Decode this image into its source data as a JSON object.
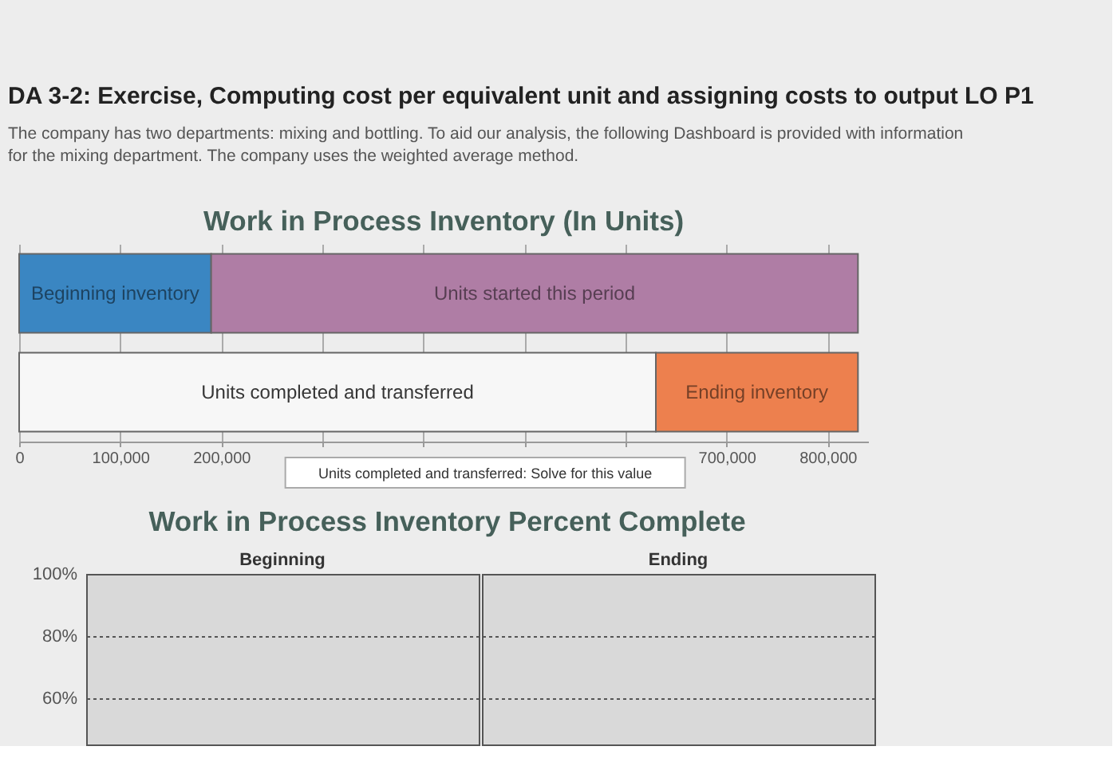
{
  "chart_data": [
    {
      "type": "other",
      "title": "DA 3-2: Exercise, Computing cost per equivalent unit and assigning costs to output LO P1",
      "annotations": [
        "The company has two departments: mixing and bottling. To aid our analysis, the following Dashboard is provided with information for the mixing department. The company uses the weighted average method."
      ]
    },
    {
      "type": "bar",
      "title": "Work in Process Inventory (In Units)",
      "orientation": "horizontal",
      "stacked": true,
      "categories": [
        null,
        null
      ],
      "series": [
        {
          "name": "Beginning inventory",
          "color": "#3a86c2",
          "values": [
            190000,
            null
          ]
        },
        {
          "name": "Units started this period",
          "color": "#af7da5",
          "values": [
            640000,
            null
          ]
        },
        {
          "name": "Units completed and transferred",
          "color": "#f7f7f7",
          "values": [
            null,
            630000
          ]
        },
        {
          "name": "Ending inventory",
          "color": "#ed804e",
          "values": [
            null,
            200000
          ]
        }
      ],
      "xlim": [
        0,
        840000
      ],
      "xticks": [
        0,
        {
          "value": 100000,
          "label": "100,000"
        },
        {
          "value": 200000,
          "label": "200,000"
        },
        {
          "value": 300000,
          "label": null
        },
        {
          "value": 400000,
          "label": null
        },
        {
          "value": 500000,
          "label": null
        },
        {
          "value": 600000,
          "label": null
        },
        {
          "value": 700000,
          "label": "700,000"
        },
        {
          "value": 800000,
          "label": "800,000"
        }
      ],
      "grid": "x",
      "annotations": [
        "Units completed and transferred: Solve for this value"
      ]
    },
    {
      "type": "bar",
      "title": "Work in Process Inventory Percent Complete",
      "categories": [
        "Beginning",
        "Ending"
      ],
      "values": [
        null,
        null
      ],
      "ylim": [
        45,
        100
      ],
      "yticks": [
        {
          "value": 100,
          "label": "100%"
        },
        {
          "value": 80,
          "label": "80%"
        },
        {
          "value": 60,
          "label": "60%"
        }
      ],
      "grid": "y"
    }
  ]
}
